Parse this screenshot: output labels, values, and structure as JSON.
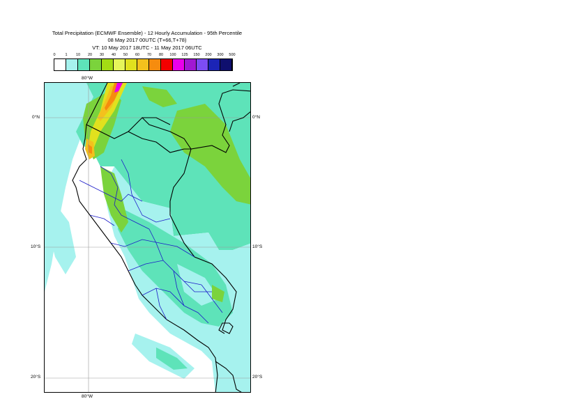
{
  "title": {
    "line1": "Total Precipitation (ECMWF Ensemble) - 12 Hourly Accumulation - 95th Percentile",
    "line2": "08 May 2017 00UTC (T+66,T+78)",
    "line3": "VT: 10 May 2017 18UTC - 11 May 2017 06UTC"
  },
  "legend": {
    "labels": [
      "0",
      "1",
      "10",
      "20",
      "30",
      "40",
      "50",
      "60",
      "70",
      "80",
      "100",
      "125",
      "150",
      "200",
      "300",
      "500"
    ],
    "colors": [
      "#ffffff",
      "#a6f2ee",
      "#5ee3b9",
      "#7bd33c",
      "#a3dc14",
      "#e6f55a",
      "#e1e11e",
      "#f3c11d",
      "#f68c0e",
      "#f30000",
      "#ea00ea",
      "#a018d2",
      "#7c4cf5",
      "#1b24b6",
      "#0f0f6e"
    ]
  },
  "axes": {
    "lon_top": "80°W",
    "lon_bottom": "80°W",
    "lat_0_left": "0°N",
    "lat_0_right": "0°N",
    "lat_10_left": "10°S",
    "lat_10_right": "10°S",
    "lat_20_left": "20°S",
    "lat_20_right": "20°S"
  },
  "map": {
    "ocean_color": "#ffffff",
    "light_precip_color": "#a6f2ee",
    "medium_precip_color": "#5ee3b9",
    "heavy_precip_color": "#7bd33c",
    "coastline_color": "#000000",
    "admin_border_color": "#1a1ac8"
  }
}
